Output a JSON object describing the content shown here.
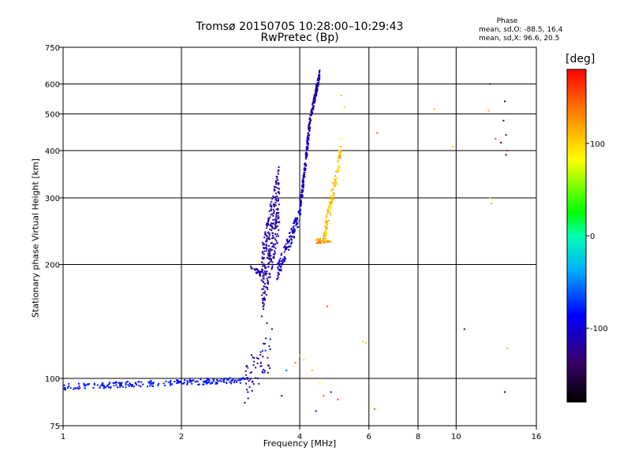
{
  "chart_data": {
    "type": "scatter",
    "title": "Tromsø 20150705 10:28:00–10:29:43",
    "subtitle": "RwPretec (Bp)",
    "xlabel": "Frequency [MHz]",
    "ylabel": "Stationary phase Virtual Height [km]",
    "x_scale": "log",
    "y_scale": "log",
    "xlim": [
      1,
      16
    ],
    "ylim": [
      75,
      750
    ],
    "x_ticks": [
      1,
      2,
      4,
      6,
      8,
      10,
      16
    ],
    "x_tick_labels": [
      "1",
      "2",
      "4",
      "6",
      "8",
      "10",
      "16"
    ],
    "x_gridlines": [
      2,
      4,
      6,
      8,
      10
    ],
    "y_ticks": [
      75,
      100,
      200,
      300,
      400,
      500,
      600,
      750
    ],
    "y_tick_labels": [
      "75",
      "100",
      "200",
      "300",
      "400",
      "500",
      "600",
      "750"
    ],
    "y_gridlines": [
      100,
      200,
      300,
      400,
      500,
      600
    ],
    "grid": true,
    "phase_stats": {
      "heading": "Phase",
      "o_line": "mean, sd,O:  -88.5, 16.4",
      "x_line": "mean, sd,X:  96.6, 20.5"
    },
    "colorbar": {
      "label": "[deg]",
      "range": [
        -180,
        180
      ],
      "ticks": [
        100,
        0,
        -100
      ],
      "tick_labels": [
        "100",
        "0",
        "-100"
      ]
    },
    "series": [
      {
        "kind": "band",
        "x_range": [
          1.0,
          2.9
        ],
        "y_start": 95,
        "y_end": 99,
        "y_spread": 0.018,
        "count": 240,
        "phase_range": [
          -95,
          -70
        ]
      },
      {
        "kind": "band",
        "x_range": [
          2.9,
          3.4
        ],
        "y_start": 97,
        "y_end": 120,
        "y_spread": 0.12,
        "count": 60,
        "phase_range": [
          -150,
          -70
        ]
      },
      {
        "kind": "band",
        "x_range": [
          3.2,
          3.55
        ],
        "y_start": 180,
        "y_end": 300,
        "y_spread": 0.22,
        "count": 300,
        "phase_range": [
          -125,
          -105
        ]
      },
      {
        "kind": "band",
        "x_range": [
          3.0,
          3.2
        ],
        "y_start": 198,
        "y_end": 188,
        "y_spread": 0.015,
        "count": 30,
        "phase_range": [
          -120,
          -100
        ]
      },
      {
        "kind": "band",
        "x_range": [
          3.5,
          4.0
        ],
        "y_start": 190,
        "y_end": 270,
        "y_spread": 0.05,
        "count": 120,
        "phase_range": [
          -120,
          -90
        ]
      },
      {
        "kind": "band",
        "x_range": [
          4.0,
          4.25
        ],
        "y_start": 270,
        "y_end": 480,
        "y_spread": 0.05,
        "count": 150,
        "phase_range": [
          -120,
          -100
        ]
      },
      {
        "kind": "band",
        "x_range": [
          4.25,
          4.5
        ],
        "y_start": 480,
        "y_end": 640,
        "y_spread": 0.03,
        "count": 120,
        "phase_range": [
          -125,
          -105
        ]
      },
      {
        "kind": "band",
        "x_range": [
          4.4,
          4.8
        ],
        "y_start": 230,
        "y_end": 232,
        "y_spread": 0.015,
        "count": 40,
        "phase_range": [
          110,
          145
        ]
      },
      {
        "kind": "band",
        "x_range": [
          4.6,
          5.1
        ],
        "y_start": 232,
        "y_end": 400,
        "y_spread": 0.06,
        "count": 120,
        "phase_range": [
          85,
          125
        ]
      },
      {
        "kind": "points",
        "x": [
          5.1,
          5.2,
          5.1,
          6.3,
          8.8,
          9.8,
          12.2,
          12.1,
          12.6,
          13.0,
          13.3,
          13.2,
          13.4,
          13.5,
          13.4,
          12.2,
          12.3,
          13.5,
          10.5,
          13.3,
          5.8,
          5.9,
          6.2,
          6.0,
          4.2,
          4.3,
          4.5,
          4.8,
          4.6,
          5.0,
          3.9,
          3.7,
          3.3,
          3.4,
          3.6,
          4.0,
          4.1,
          4.7,
          4.4
        ],
        "y": [
          560,
          520,
          430,
          445,
          515,
          410,
          600,
          510,
          430,
          420,
          540,
          480,
          440,
          400,
          390,
          300,
          290,
          120,
          135,
          92,
          125,
          124,
          83,
          85,
          100,
          105,
          97,
          92,
          90,
          88,
          110,
          105,
          140,
          135,
          90,
          115,
          112,
          155,
          82
        ],
        "phase": [
          110,
          100,
          85,
          150,
          110,
          105,
          -130,
          115,
          150,
          -150,
          -140,
          -150,
          -150,
          180,
          -150,
          100,
          120,
          115,
          -115,
          -150,
          105,
          100,
          150,
          160,
          150,
          110,
          80,
          -110,
          140,
          160,
          140,
          -60,
          -140,
          -140,
          -120,
          120,
          100,
          150,
          -130
        ]
      }
    ]
  }
}
